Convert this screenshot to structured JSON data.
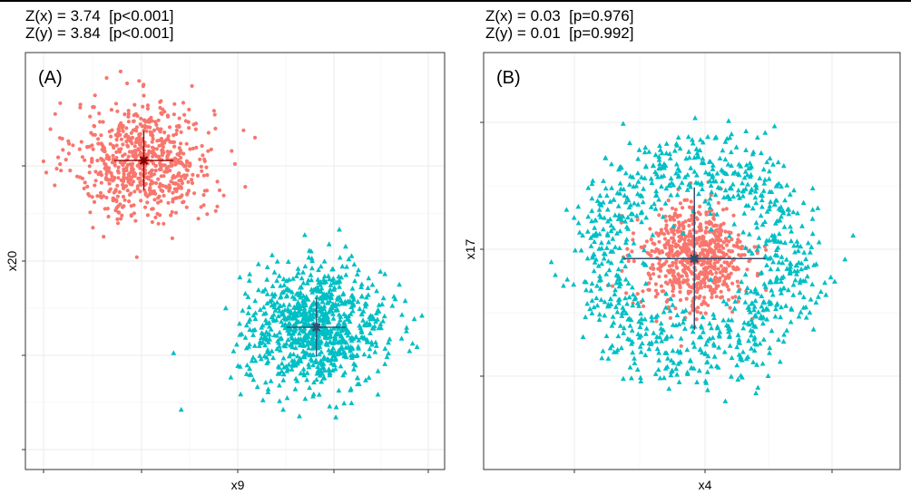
{
  "colors": {
    "group1": "#F8766D",
    "group2": "#00BFC4",
    "center1": "#8B0000",
    "center2": "#2F4F6F",
    "grid_major": "#EBEBEB",
    "grid_minor": "#F5F5F5",
    "frame": "#333333"
  },
  "panels": [
    {
      "label": "(A)",
      "stat_x": "Z(x) = 3.74  [p<0.001]",
      "stat_y": "Z(y) = 3.84  [p<0.001]",
      "xlabel": "x9",
      "ylabel": "x20"
    },
    {
      "label": "(B)",
      "stat_x": "Z(x) = 0.03  [p=0.976]",
      "stat_y": "Z(y) = 0.01  [p=0.992]",
      "xlabel": "x4",
      "ylabel": "x17"
    }
  ],
  "chart_data": [
    {
      "type": "scatter",
      "title": "(A)",
      "xlabel": "x9",
      "ylabel": "x20",
      "xlim": [
        0,
        8.5
      ],
      "ylim": [
        0,
        8.5
      ],
      "grid": true,
      "legend": "none",
      "series": [
        {
          "marker": "circle",
          "color": "#F8766D",
          "distribution": "normal",
          "n": 700,
          "center": [
            2.4,
            6.3
          ],
          "sd": [
            0.7,
            0.6
          ]
        },
        {
          "marker": "triangle",
          "color": "#00BFC4",
          "distribution": "normal",
          "n": 900,
          "center": [
            5.9,
            2.9
          ],
          "sd": [
            0.7,
            0.6
          ]
        }
      ],
      "centroids": [
        {
          "x": 2.4,
          "y": 6.3,
          "xerr": 0.6,
          "yerr": 0.6,
          "color": "#8B0000"
        },
        {
          "x": 5.9,
          "y": 2.9,
          "xerr": 0.6,
          "yerr": 0.6,
          "color": "#2F4F6F"
        }
      ]
    },
    {
      "type": "scatter",
      "title": "(B)",
      "xlabel": "x4",
      "ylabel": "x17",
      "xlim": [
        0,
        8.5
      ],
      "ylim": [
        0,
        8.5
      ],
      "grid": true,
      "legend": "none",
      "series": [
        {
          "marker": "circle",
          "color": "#F8766D",
          "distribution": "normal",
          "n": 700,
          "center": [
            4.3,
            4.3
          ],
          "sd": [
            0.55,
            0.55
          ]
        },
        {
          "marker": "triangle",
          "color": "#00BFC4",
          "distribution": "ring",
          "n": 900,
          "center": [
            4.3,
            4.3
          ],
          "radius": 1.95,
          "spread": 0.42
        }
      ],
      "centroids": [
        {
          "x": 4.3,
          "y": 4.3,
          "xerr": 1.45,
          "yerr": 1.45,
          "color": "#8B0000"
        },
        {
          "x": 4.3,
          "y": 4.3,
          "xerr": 1.45,
          "yerr": 1.45,
          "color": "#2F4F6F"
        }
      ]
    }
  ]
}
